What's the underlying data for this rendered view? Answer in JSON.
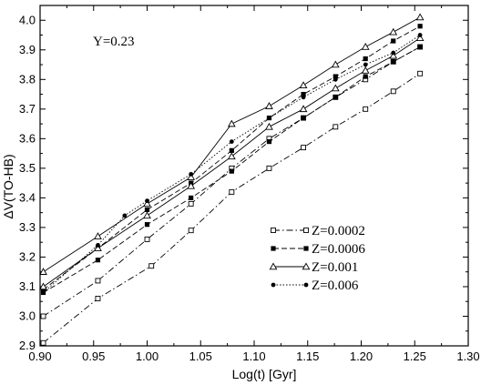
{
  "chart_data": {
    "type": "line",
    "title": "",
    "xlabel": "Log(t) [Gyr]",
    "ylabel": "ΔV(TO-HB)",
    "xlim": [
      0.9,
      1.3
    ],
    "ylim": [
      2.9,
      4.05
    ],
    "xticks": [
      "0.90",
      "0.95",
      "1.00",
      "1.05",
      "1.10",
      "1.15",
      "1.20",
      "1.25",
      "1.30"
    ],
    "yticks": [
      "2.9",
      "3.0",
      "3.1",
      "3.2",
      "3.3",
      "3.4",
      "3.5",
      "3.6",
      "3.7",
      "3.8",
      "3.9",
      "4.0"
    ],
    "annotation": "Y=0.23",
    "grid": false,
    "legend_position": "lower-right",
    "series": [
      {
        "name": "Z=0.0002",
        "marker": "open-square",
        "line": "dash-dot",
        "curves": [
          {
            "x": [
              0.903,
              0.954,
              1.004,
              1.041,
              1.079,
              1.114,
              1.146,
              1.176,
              1.204,
              1.23,
              1.255
            ],
            "y": [
              2.91,
              3.06,
              3.17,
              3.29,
              3.42,
              3.5,
              3.57,
              3.64,
              3.7,
              3.76,
              3.82
            ]
          },
          {
            "x": [
              0.903,
              0.954,
              1.0,
              1.041,
              1.079,
              1.114,
              1.146,
              1.176,
              1.204,
              1.23,
              1.255
            ],
            "y": [
              3.0,
              3.12,
              3.26,
              3.38,
              3.5,
              3.6,
              3.67,
              3.74,
              3.8,
              3.86,
              3.91
            ]
          }
        ]
      },
      {
        "name": "Z=0.0006",
        "marker": "filled-square",
        "line": "dashed",
        "curves": [
          {
            "x": [
              0.903,
              0.954,
              1.0,
              1.041,
              1.079,
              1.114,
              1.146,
              1.176,
              1.204,
              1.23,
              1.255
            ],
            "y": [
              3.08,
              3.19,
              3.31,
              3.4,
              3.49,
              3.59,
              3.67,
              3.74,
              3.81,
              3.86,
              3.91
            ]
          },
          {
            "x": [
              0.903,
              0.954,
              1.0,
              1.041,
              1.079,
              1.114,
              1.146,
              1.176,
              1.204,
              1.23,
              1.255
            ],
            "y": [
              3.09,
              3.23,
              3.36,
              3.45,
              3.56,
              3.67,
              3.75,
              3.81,
              3.87,
              3.93,
              3.98
            ]
          }
        ]
      },
      {
        "name": "Z=0.001",
        "marker": "open-triangle",
        "line": "solid",
        "curves": [
          {
            "x": [
              0.903,
              0.954,
              1.0,
              1.041,
              1.079,
              1.114,
              1.146,
              1.176,
              1.204,
              1.23,
              1.255
            ],
            "y": [
              3.15,
              3.27,
              3.38,
              3.47,
              3.65,
              3.71,
              3.78,
              3.85,
              3.91,
              3.96,
              4.01
            ]
          },
          {
            "x": [
              0.903,
              0.954,
              1.0,
              1.041,
              1.079,
              1.114,
              1.146,
              1.176,
              1.204,
              1.23,
              1.255
            ],
            "y": [
              3.1,
              3.23,
              3.34,
              3.44,
              3.54,
              3.64,
              3.7,
              3.77,
              3.83,
              3.88,
              3.94
            ]
          }
        ]
      },
      {
        "name": "Z=0.006",
        "marker": "filled-dot",
        "line": "dotted",
        "curves": [
          {
            "x": [
              0.903,
              0.954,
              0.979,
              1.0,
              1.041,
              1.079,
              1.114,
              1.146,
              1.176,
              1.204,
              1.23,
              1.255
            ],
            "y": [
              3.08,
              3.24,
              3.34,
              3.39,
              3.48,
              3.59,
              3.67,
              3.74,
              3.8,
              3.85,
              3.89,
              3.95
            ]
          }
        ]
      }
    ]
  }
}
